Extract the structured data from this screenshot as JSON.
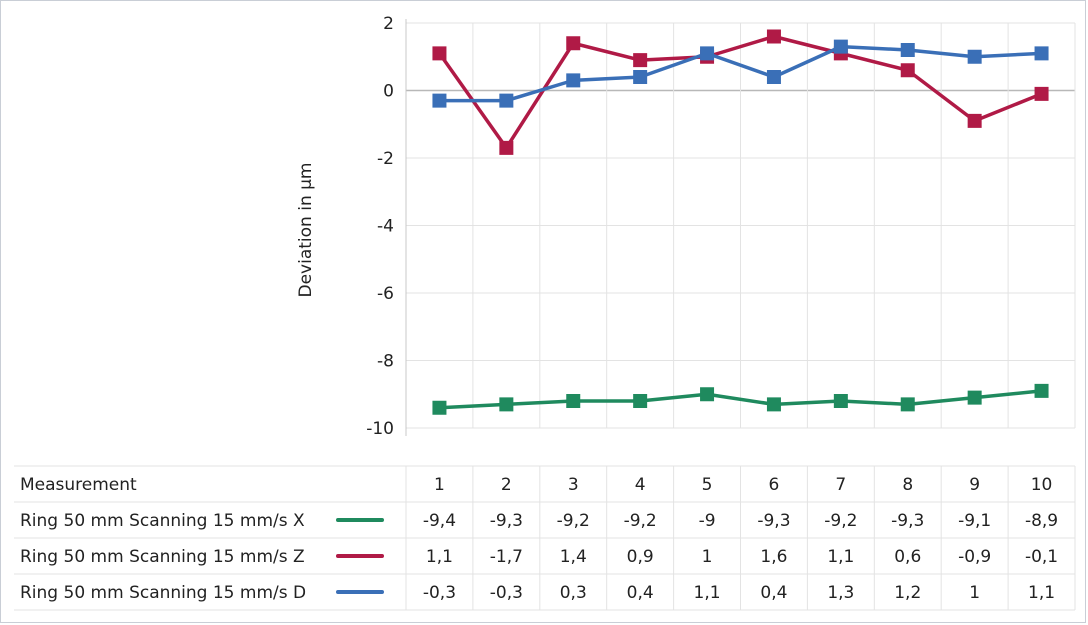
{
  "chart_data": {
    "type": "line",
    "title": "",
    "xlabel": "Measurement",
    "ylabel": "Deviation in µm",
    "ylim": [
      -10,
      2
    ],
    "yticks": [
      2,
      0,
      -2,
      -4,
      -6,
      -8,
      -10
    ],
    "ytick_labels": [
      "2",
      "0",
      "-2",
      "-4",
      "-6",
      "-8",
      "-10"
    ],
    "categories": [
      "1",
      "2",
      "3",
      "4",
      "5",
      "6",
      "7",
      "8",
      "9",
      "10"
    ],
    "grid": true,
    "legend": "data-table-below",
    "series": [
      {
        "name": "Ring 50 mm Scanning 15 mm/s X",
        "color": "#1f8a5e",
        "values": [
          -9.4,
          -9.3,
          -9.2,
          -9.2,
          -9.0,
          -9.3,
          -9.2,
          -9.3,
          -9.1,
          -8.9
        ],
        "labels": [
          "-9,4",
          "-9,3",
          "-9,2",
          "-9,2",
          "-9",
          "-9,3",
          "-9,2",
          "-9,3",
          "-9,1",
          "-8,9"
        ]
      },
      {
        "name": "Ring 50 mm Scanning 15 mm/s Z",
        "color": "#b01a46",
        "values": [
          1.1,
          -1.7,
          1.4,
          0.9,
          1.0,
          1.6,
          1.1,
          0.6,
          -0.9,
          -0.1
        ],
        "labels": [
          "1,1",
          "-1,7",
          "1,4",
          "0,9",
          "1",
          "1,6",
          "1,1",
          "0,6",
          "-0,9",
          "-0,1"
        ]
      },
      {
        "name": "Ring 50 mm Scanning 15 mm/s D",
        "color": "#3a6fb7",
        "values": [
          -0.3,
          -0.3,
          0.3,
          0.4,
          1.1,
          0.4,
          1.3,
          1.2,
          1.0,
          1.1
        ],
        "labels": [
          "-0,3",
          "-0,3",
          "0,3",
          "0,4",
          "1,1",
          "0,4",
          "1,3",
          "1,2",
          "1",
          "1,1"
        ]
      }
    ]
  }
}
